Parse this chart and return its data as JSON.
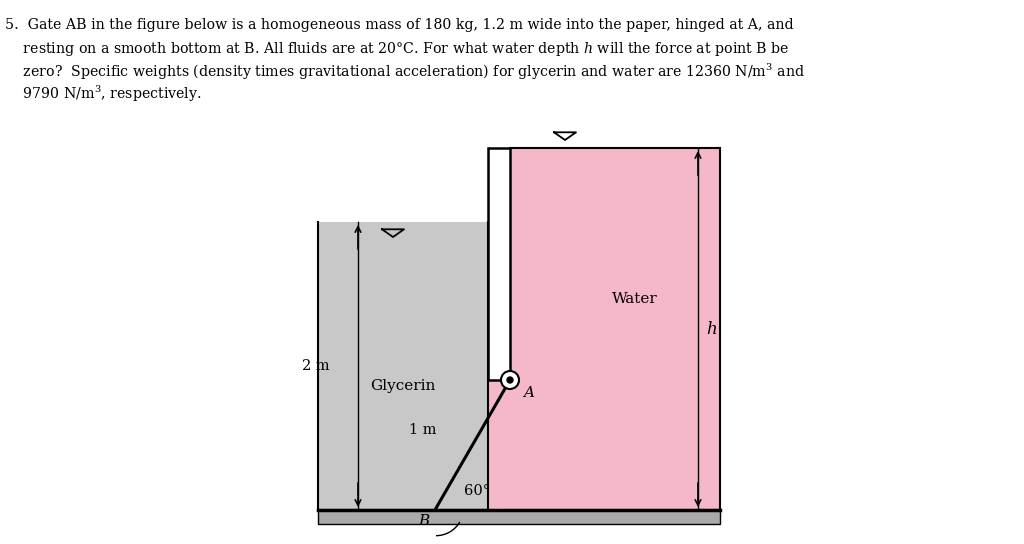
{
  "bg_color": "#ffffff",
  "glycerin_color": "#c8c8c8",
  "water_color": "#f5b8c8",
  "text_color": "#000000",
  "fig_width": 10.24,
  "fig_height": 5.44,
  "dpi": 100,
  "problem_text_line1": "5.  Gate AB in the figure below is a homogeneous mass of 180 kg, 1.2 m wide into the paper, hinged at A, and",
  "problem_text_line2": "    resting on a smooth bottom at B. All fluids are at 20°C. For what water depth $h$ will the force at point B be",
  "problem_text_line3": "    zero?  Specific weights (density times gravitational acceleration) for glycerin and water are 12360 N/m$^3$ and",
  "problem_text_line4": "    9790 N/m$^3$, respectively."
}
